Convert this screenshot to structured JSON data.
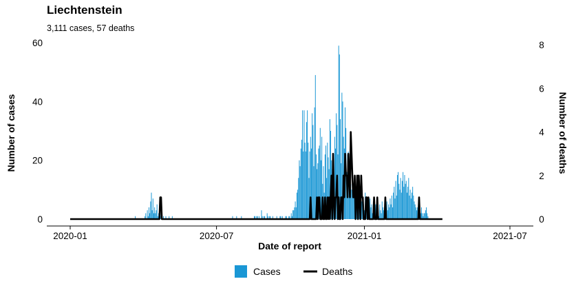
{
  "chart_data": {
    "type": "bar",
    "title": "Liechtenstein",
    "subtitle": "3,111 cases, 57 deaths",
    "xlabel": "Date of report",
    "ylabel": "Number of cases",
    "y2label": "Number of deaths",
    "xlim": [
      "2020-01-01",
      "2021-07-01"
    ],
    "x_ticks": [
      "2020-01",
      "2020-07",
      "2021-01",
      "2021-07"
    ],
    "ylim": [
      0,
      60
    ],
    "y_ticks": [
      0,
      20,
      40,
      60
    ],
    "y2lim": [
      0,
      8
    ],
    "y2_ticks": [
      0,
      2,
      4,
      6,
      8
    ],
    "grid": false,
    "legend_position": "bottom",
    "colors": {
      "cases": "#1a97d5",
      "deaths": "#000000"
    },
    "series": [
      {
        "name": "Cases",
        "kind": "bar",
        "axis": "left",
        "start_date": "2020-01-01",
        "values": [
          0,
          0,
          0,
          0,
          0,
          0,
          0,
          0,
          0,
          0,
          0,
          0,
          0,
          0,
          0,
          0,
          0,
          0,
          0,
          0,
          0,
          0,
          0,
          0,
          0,
          0,
          0,
          0,
          0,
          0,
          0,
          0,
          0,
          0,
          0,
          0,
          0,
          0,
          0,
          0,
          0,
          0,
          0,
          0,
          0,
          0,
          0,
          0,
          0,
          0,
          0,
          0,
          0,
          0,
          0,
          0,
          0,
          0,
          0,
          0,
          0,
          0,
          0,
          0,
          0,
          0,
          0,
          0,
          0,
          0,
          0,
          0,
          0,
          0,
          0,
          0,
          0,
          0,
          0,
          0,
          0,
          1,
          0,
          0,
          0,
          0,
          0,
          0,
          0,
          0,
          0,
          0,
          0,
          1,
          2,
          0,
          3,
          1,
          4,
          2,
          6,
          9,
          3,
          7,
          2,
          4,
          2,
          3,
          5,
          1,
          2,
          4,
          1,
          3,
          1,
          0,
          1,
          0,
          0,
          1,
          0,
          0,
          0,
          1,
          0,
          0,
          0,
          1,
          0,
          0,
          0,
          0,
          0,
          0,
          0,
          0,
          0,
          0,
          0,
          0,
          0,
          0,
          0,
          0,
          0,
          0,
          0,
          0,
          0,
          0,
          0,
          0,
          0,
          0,
          0,
          0,
          0,
          0,
          0,
          0,
          0,
          0,
          0,
          0,
          0,
          0,
          0,
          0,
          0,
          0,
          0,
          0,
          0,
          0,
          0,
          0,
          0,
          0,
          0,
          0,
          0,
          0,
          0,
          0,
          0,
          0,
          0,
          0,
          0,
          0,
          0,
          0,
          0,
          0,
          0,
          0,
          0,
          0,
          0,
          0,
          0,
          0,
          1,
          0,
          0,
          0,
          0,
          1,
          0,
          0,
          0,
          0,
          0,
          1,
          0,
          0,
          0,
          0,
          0,
          0,
          0,
          0,
          0,
          0,
          0,
          0,
          0,
          0,
          0,
          1,
          1,
          0,
          1,
          1,
          0,
          1,
          0,
          0,
          3,
          1,
          0,
          1,
          1,
          0,
          0,
          2,
          1,
          0,
          1,
          1,
          0,
          0,
          1,
          0,
          0,
          0,
          0,
          1,
          0,
          0,
          0,
          1,
          1,
          0,
          1,
          0,
          0,
          0,
          1,
          1,
          0,
          0,
          1,
          1,
          0,
          2,
          1,
          3,
          3,
          4,
          6,
          4,
          9,
          10,
          14,
          20,
          18,
          24,
          27,
          37,
          23,
          37,
          26,
          23,
          33,
          37,
          26,
          14,
          23,
          28,
          24,
          36,
          32,
          18,
          38,
          49,
          22,
          17,
          19,
          24,
          25,
          31,
          20,
          28,
          12,
          18,
          9,
          22,
          25,
          14,
          26,
          21,
          17,
          34,
          30,
          20,
          17,
          22,
          13,
          28,
          24,
          36,
          32,
          22,
          59,
          56,
          34,
          19,
          43,
          40,
          28,
          24,
          38,
          31,
          16,
          22,
          23,
          15,
          18,
          12,
          10,
          14,
          9,
          11,
          12,
          10,
          8,
          7,
          9,
          11,
          4,
          6,
          8,
          6,
          4,
          5,
          3,
          9,
          4,
          6,
          2,
          5,
          3,
          7,
          4,
          5,
          2,
          6,
          4,
          3,
          5,
          3,
          4,
          2,
          1,
          5,
          3,
          2,
          6,
          4,
          3,
          2,
          5,
          4,
          6,
          3,
          5,
          4,
          7,
          5,
          8,
          4,
          9,
          11,
          7,
          13,
          8,
          15,
          16,
          12,
          10,
          14,
          9,
          13,
          16,
          11,
          15,
          12,
          13,
          9,
          11,
          14,
          8,
          10,
          7,
          9,
          11,
          8,
          6,
          5,
          4,
          3,
          4,
          2,
          3,
          3,
          2,
          4,
          2,
          1,
          2,
          2,
          3,
          4,
          2,
          1
        ]
      },
      {
        "name": "Deaths",
        "kind": "line",
        "axis": "right",
        "start_date": "2020-01-01",
        "values": [
          0,
          0,
          0,
          0,
          0,
          0,
          0,
          0,
          0,
          0,
          0,
          0,
          0,
          0,
          0,
          0,
          0,
          0,
          0,
          0,
          0,
          0,
          0,
          0,
          0,
          0,
          0,
          0,
          0,
          0,
          0,
          0,
          0,
          0,
          0,
          0,
          0,
          0,
          0,
          0,
          0,
          0,
          0,
          0,
          0,
          0,
          0,
          0,
          0,
          0,
          0,
          0,
          0,
          0,
          0,
          0,
          0,
          0,
          0,
          0,
          0,
          0,
          0,
          0,
          0,
          0,
          0,
          0,
          0,
          0,
          0,
          0,
          0,
          0,
          0,
          0,
          0,
          0,
          0,
          0,
          0,
          0,
          0,
          0,
          0,
          0,
          0,
          0,
          0,
          0,
          0,
          0,
          0,
          0,
          0,
          0,
          0,
          0,
          0,
          0,
          0,
          0,
          0,
          0,
          0,
          0,
          0,
          0,
          0,
          0,
          0,
          0,
          1,
          1,
          0,
          0,
          0,
          0,
          0,
          0,
          0,
          0,
          0,
          0,
          0,
          0,
          0,
          0,
          0,
          0,
          0,
          0,
          0,
          0,
          0,
          0,
          0,
          0,
          0,
          0,
          0,
          0,
          0,
          0,
          0,
          0,
          0,
          0,
          0,
          0,
          0,
          0,
          0,
          0,
          0,
          0,
          0,
          0,
          0,
          0,
          0,
          0,
          0,
          0,
          0,
          0,
          0,
          0,
          0,
          0,
          0,
          0,
          0,
          0,
          0,
          0,
          0,
          0,
          0,
          0,
          0,
          0,
          0,
          0,
          0,
          0,
          0,
          0,
          0,
          0,
          0,
          0,
          0,
          0,
          0,
          0,
          0,
          0,
          0,
          0,
          0,
          0,
          0,
          0,
          0,
          0,
          0,
          0,
          0,
          0,
          0,
          0,
          0,
          0,
          0,
          0,
          0,
          0,
          0,
          0,
          0,
          0,
          0,
          0,
          0,
          0,
          0,
          0,
          0,
          0,
          0,
          0,
          0,
          0,
          0,
          0,
          0,
          0,
          0,
          0,
          0,
          0,
          0,
          0,
          0,
          0,
          0,
          0,
          0,
          0,
          0,
          0,
          0,
          0,
          0,
          0,
          0,
          0,
          0,
          0,
          0,
          0,
          0,
          0,
          0,
          0,
          0,
          0,
          0,
          0,
          0,
          0,
          0,
          0,
          0,
          0,
          0,
          0,
          0,
          0,
          0,
          0,
          0,
          0,
          0,
          0,
          0,
          0,
          0,
          0,
          0,
          0,
          0,
          0,
          0,
          0,
          0,
          0,
          0,
          1,
          0,
          0,
          0,
          0,
          0,
          0,
          0,
          1,
          0,
          1,
          1,
          0,
          0,
          0,
          1,
          0,
          0,
          1,
          0,
          0,
          1,
          0,
          1,
          0,
          1,
          2,
          0,
          3,
          1,
          0,
          1,
          1,
          2,
          0,
          1,
          0,
          0,
          1,
          1,
          0,
          2,
          1,
          3,
          2,
          2,
          1,
          3,
          2,
          1,
          4,
          3,
          2,
          1,
          1,
          2,
          0,
          1,
          2,
          0,
          2,
          1,
          0,
          2,
          1,
          1,
          0,
          0,
          0,
          1,
          1,
          0,
          1,
          0,
          0,
          0,
          0,
          0,
          0,
          1,
          0,
          0,
          0,
          1,
          0,
          0,
          0,
          0,
          0,
          0,
          0,
          0,
          0,
          1,
          0,
          0,
          0,
          0,
          0,
          0,
          0,
          0,
          0,
          0,
          0,
          0,
          0,
          0,
          0,
          0,
          0,
          0,
          0,
          0,
          0,
          0,
          0,
          0,
          0,
          0,
          0,
          0,
          0,
          0,
          0,
          0,
          0,
          0,
          0,
          0,
          0,
          0,
          0,
          0,
          0,
          1,
          0,
          0,
          0,
          0,
          0,
          0,
          0,
          0,
          0,
          0,
          0,
          0,
          0,
          0,
          0,
          0,
          0,
          0,
          0,
          0,
          0,
          0,
          0,
          0,
          0,
          0,
          0,
          0,
          0
        ]
      }
    ]
  }
}
